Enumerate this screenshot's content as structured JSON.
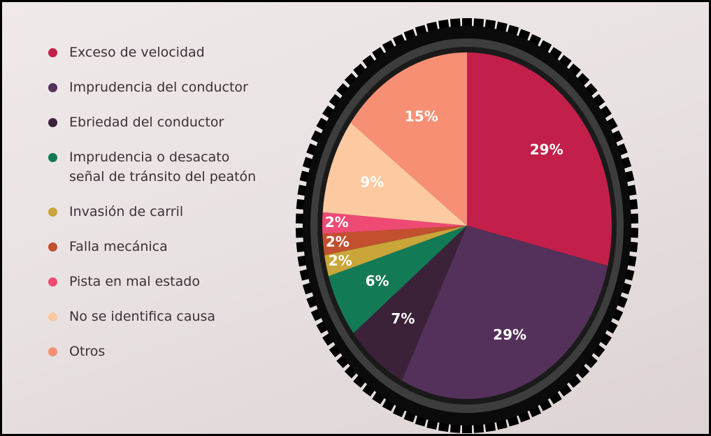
{
  "chart_data": {
    "type": "pie",
    "categories": [
      "Exceso de velocidad",
      "Imprudencia del conductor",
      "Ebriedad del conductor",
      "Imprudencia o desacato\nseñal de tránsito del peatón",
      "Invasión de carril",
      "Falla mecánica",
      "Pista en mal estado",
      "No se identifica causa",
      "Otros"
    ],
    "values": [
      29,
      29,
      7,
      6,
      2,
      2,
      2,
      9,
      15
    ],
    "value_labels": [
      "29%",
      "29%",
      "7%",
      "6%",
      "2%",
      "2%",
      "2%",
      "9%",
      "15%"
    ],
    "colors": [
      "#c2204a",
      "#54315a",
      "#3b2238",
      "#137a56",
      "#c9a53a",
      "#c2502e",
      "#ef4a74",
      "#fcc9a0",
      "#f78f74"
    ]
  }
}
